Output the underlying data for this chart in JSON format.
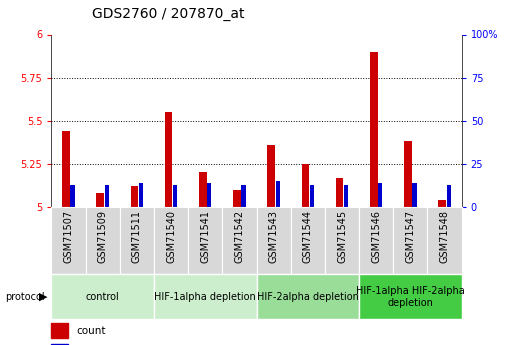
{
  "title": "GDS2760 / 207870_at",
  "samples": [
    "GSM71507",
    "GSM71509",
    "GSM71511",
    "GSM71540",
    "GSM71541",
    "GSM71542",
    "GSM71543",
    "GSM71544",
    "GSM71545",
    "GSM71546",
    "GSM71547",
    "GSM71548"
  ],
  "count_values": [
    5.44,
    5.08,
    5.12,
    5.55,
    5.2,
    5.1,
    5.36,
    5.25,
    5.17,
    5.9,
    5.38,
    5.04
  ],
  "percentile_values": [
    5.13,
    5.13,
    5.14,
    5.13,
    5.14,
    5.13,
    5.15,
    5.13,
    5.13,
    5.14,
    5.14,
    5.13
  ],
  "ylim": [
    5.0,
    6.0
  ],
  "yticks_left": [
    5.0,
    5.25,
    5.5,
    5.75,
    6.0
  ],
  "yticks_right": [
    0,
    25,
    50,
    75,
    100
  ],
  "groups": [
    {
      "label": "control",
      "indices": [
        0,
        1,
        2
      ],
      "color": "#cceecc"
    },
    {
      "label": "HIF-1alpha depletion",
      "indices": [
        3,
        4,
        5
      ],
      "color": "#cceecc"
    },
    {
      "label": "HIF-2alpha depletion",
      "indices": [
        6,
        7,
        8
      ],
      "color": "#99dd99"
    },
    {
      "label": "HIF-1alpha HIF-2alpha\ndepletion",
      "indices": [
        9,
        10,
        11
      ],
      "color": "#44cc44"
    }
  ],
  "bar_color_red": "#cc0000",
  "bar_color_blue": "#0000cc",
  "tick_fontsize": 7,
  "label_fontsize": 7,
  "title_fontsize": 10,
  "legend_fontsize": 7.5,
  "group_label_fontsize": 7
}
